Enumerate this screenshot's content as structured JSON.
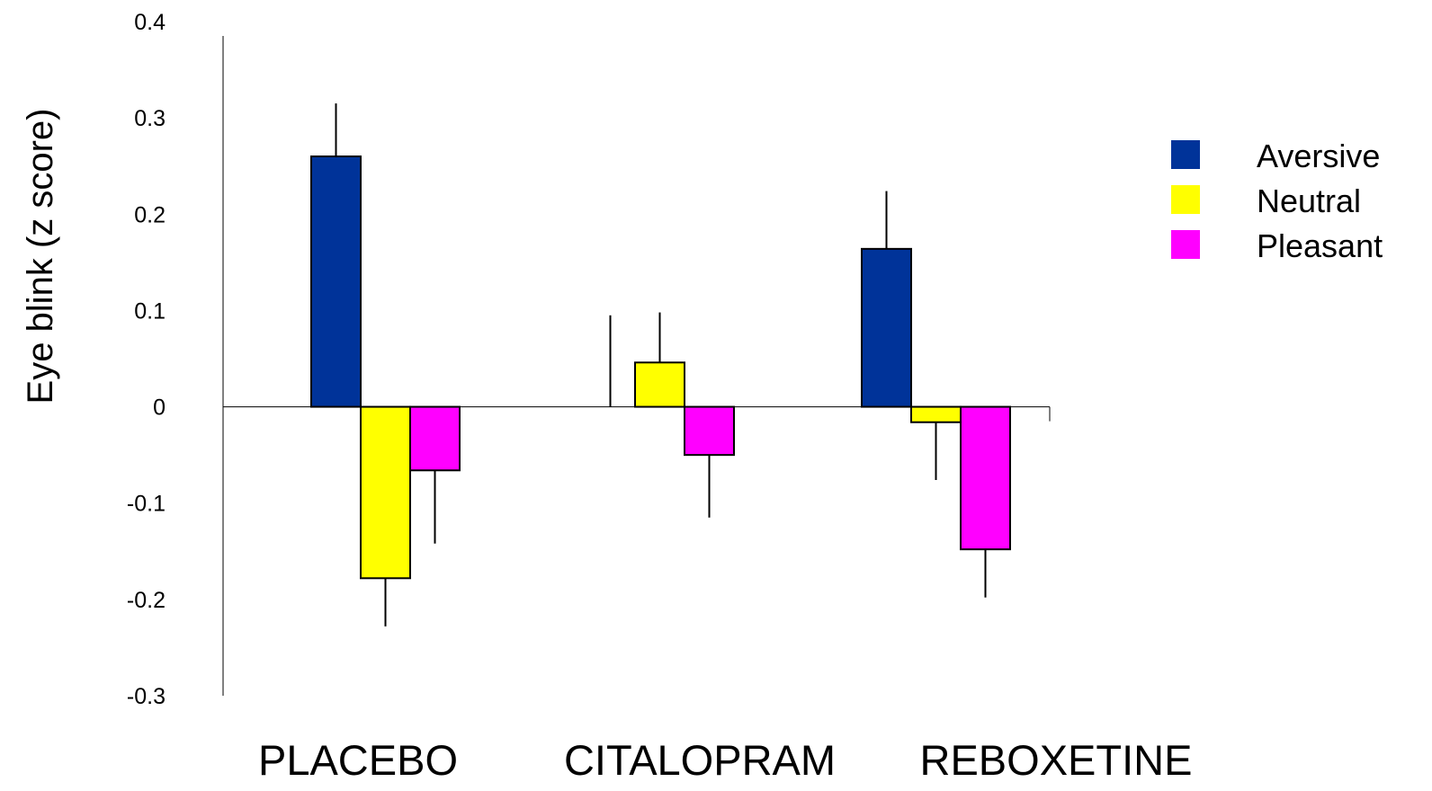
{
  "chart_data": {
    "type": "bar",
    "title": "",
    "xlabel": "",
    "ylabel": "Eye blink (z score)",
    "ylim": [
      -0.3,
      0.4
    ],
    "yticks": [
      {
        "value": 0.4,
        "label": "0.4"
      },
      {
        "value": 0.3,
        "label": "0.3"
      },
      {
        "value": 0.2,
        "label": "0.2"
      },
      {
        "value": 0.1,
        "label": "0.1"
      },
      {
        "value": 0,
        "label": "0"
      },
      {
        "value": -0.1,
        "label": "-0.1"
      },
      {
        "value": -0.2,
        "label": "-0.2"
      },
      {
        "value": -0.3,
        "label": "-0.3"
      }
    ],
    "categories": [
      "PLACEBO",
      "CITALOPRAM",
      "REBOXETINE"
    ],
    "series": [
      {
        "name": "Aversive",
        "color": "#003399",
        "values": [
          0.26,
          0.0,
          0.164
        ],
        "errors": [
          0.055,
          0.095,
          0.06
        ]
      },
      {
        "name": "Neutral",
        "color": "#ffff00",
        "values": [
          -0.178,
          0.046,
          -0.016
        ],
        "errors": [
          0.05,
          0.052,
          0.06
        ]
      },
      {
        "name": "Pleasant",
        "color": "#ff00ff",
        "values": [
          -0.066,
          -0.05,
          -0.148
        ],
        "errors": [
          0.076,
          0.065,
          0.05
        ]
      }
    ],
    "grid": false,
    "legend": {
      "placement": "right"
    }
  }
}
